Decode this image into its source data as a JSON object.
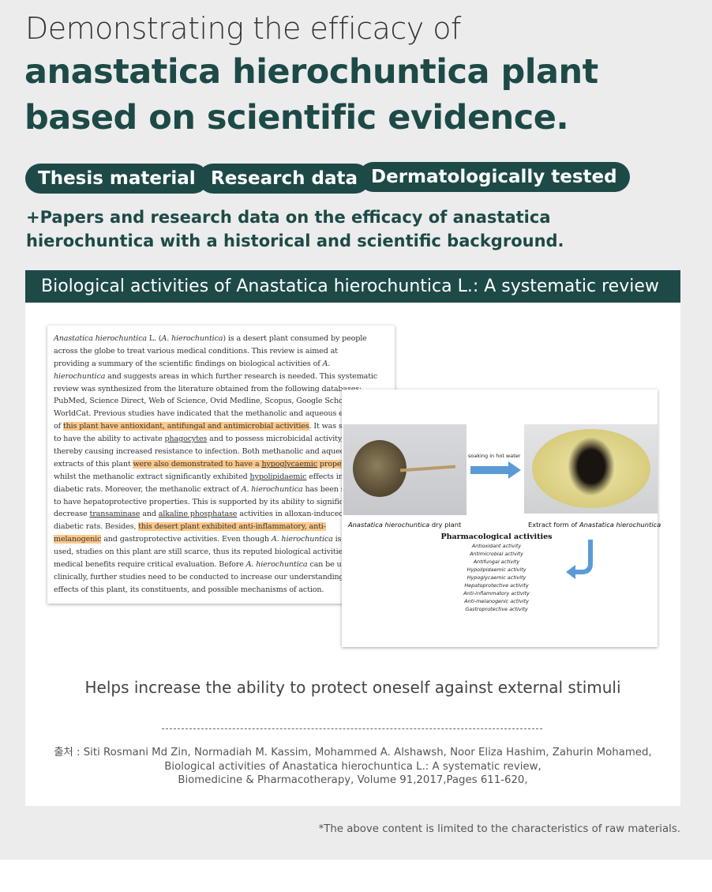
{
  "header": {
    "line1": "Demonstrating the efficacy of",
    "line2": "anastatica hierochuntica plant",
    "line3": "based on scientific evidence."
  },
  "tags": [
    "Thesis material",
    "Research data",
    "Dermatologically tested"
  ],
  "subtitle": {
    "line1": "+Papers and research data on the efficacy of anastatica",
    "line2": "hierochuntica with a historical and scientific background."
  },
  "banner": "Biological activities of Anastatica hierochuntica L.: A systematic review",
  "paper_lines": [
    [
      [
        "Anastatica hierochuntica",
        "i"
      ],
      [
        " L. (",
        ""
      ],
      [
        "A. hierochuntica",
        "i"
      ],
      [
        ") is a desert plant consumed by people",
        ""
      ]
    ],
    [
      [
        "across the globe to treat various medical conditions. This review is aimed at",
        ""
      ]
    ],
    [
      [
        "providing a summary of the scientific findings on biological activities of ",
        ""
      ],
      [
        "A.",
        "i"
      ]
    ],
    [
      [
        "hierochuntica",
        "i"
      ],
      [
        " and suggests areas in which further research is needed. This systematic",
        ""
      ]
    ],
    [
      [
        "review was synthesized from the literature obtained from the following databases:",
        ""
      ]
    ],
    [
      [
        "PubMed, Science Direct, Web of Science, Ovid Medline, Scopus, Google Schol",
        ""
      ]
    ],
    [
      [
        "WorldCat. Previous studies have indicated that the methanolic and aqueous e",
        ""
      ]
    ],
    [
      [
        "of ",
        ""
      ],
      [
        "this plant have antioxidant, antifungal and antimicrobial activities",
        "h"
      ],
      [
        ". It was s",
        ""
      ]
    ],
    [
      [
        "to have the ability to activate ",
        ""
      ],
      [
        "phagocytes",
        "u"
      ],
      [
        " and to possess microbicidal activity,",
        ""
      ]
    ],
    [
      [
        "thereby causing increased resistance to infection. Both methanolic and aqueo",
        ""
      ]
    ],
    [
      [
        "extracts of this plant ",
        ""
      ],
      [
        "were also demonstrated to have a ",
        "h"
      ],
      [
        "hypoglycaemic",
        "h u"
      ],
      [
        " proper",
        "h"
      ]
    ],
    [
      [
        "whilst the methanolic extract significantly exhibited ",
        ""
      ],
      [
        "hypolipidaemic",
        "u"
      ],
      [
        " effects in",
        ""
      ]
    ],
    [
      [
        "diabetic rats. Moreover, the methanolic extract of ",
        ""
      ],
      [
        "A. hierochuntica",
        "i"
      ],
      [
        " has been sug",
        ""
      ]
    ],
    [
      [
        "to have hepatoprotective properties. This is supported by its ability to signific",
        ""
      ]
    ],
    [
      [
        "decrease ",
        ""
      ],
      [
        "transaminase",
        "u"
      ],
      [
        " and ",
        ""
      ],
      [
        "alkaline phosphatase",
        "u"
      ],
      [
        " activities in alloxan-induced",
        ""
      ]
    ],
    [
      [
        "diabetic rats. Besides, ",
        ""
      ],
      [
        "this desert plant exhibited anti-inflammatory, anti-",
        "h"
      ]
    ],
    [
      [
        "melanogenic",
        "h"
      ],
      [
        " and gastroprotective activities. Even though ",
        ""
      ],
      [
        "A. hierochuntica",
        "i"
      ],
      [
        " is wi",
        ""
      ]
    ],
    [
      [
        "used, studies on this plant are still scarce, thus its reputed biological activities",
        ""
      ]
    ],
    [
      [
        "medical benefits require critical evaluation. Before ",
        ""
      ],
      [
        "A. hierochuntica",
        "i"
      ],
      [
        " can be used",
        ""
      ]
    ],
    [
      [
        "clinically, further studies need to be conducted to increase our understanding",
        ""
      ]
    ],
    [
      [
        "effects of this plant, its constituents, and possible mechanisms of action.",
        ""
      ]
    ]
  ],
  "figure": {
    "arrow_label": "soaking in hot water",
    "caption_left": {
      "italic": "Anastatica hierochuntica",
      "rest": " dry plant"
    },
    "caption_right": {
      "rest": "Extract form of ",
      "italic": "Anastatica hierochuntica"
    },
    "activities_title": "Pharmacological activities",
    "activities": [
      "Antioxidant activity",
      "Antimicrobial activity",
      "Antifungal activity",
      "Hypolipidaemic activity",
      "Hypoglycaemic activity",
      "Hepatoprotective activity",
      "Anti-inflammatory activity",
      "Anti-melanogenic activity",
      "Gastroprotective activity"
    ],
    "arrow_color": "#5b9bd5"
  },
  "helps": "Helps increase the ability to protect oneself against external stimuli",
  "source": {
    "line1": "출처 : Siti Rosmani Md Zin, Normadiah M. Kassim, Mohammed A. Alshawsh, Noor Eliza Hashim, Zahurin Mohamed,",
    "line2": "Biological activities of Anastatica hierochuntica L.: A systematic review,",
    "line3": "Biomedicine & Pharmacotherapy, Volume 91,2017,Pages 611-620,"
  },
  "footnote": "*The above content is limited to the characteristics of raw materials.",
  "colors": {
    "brand": "#1d4a47",
    "background": "#ececec",
    "highlight": "#fcc88a"
  }
}
